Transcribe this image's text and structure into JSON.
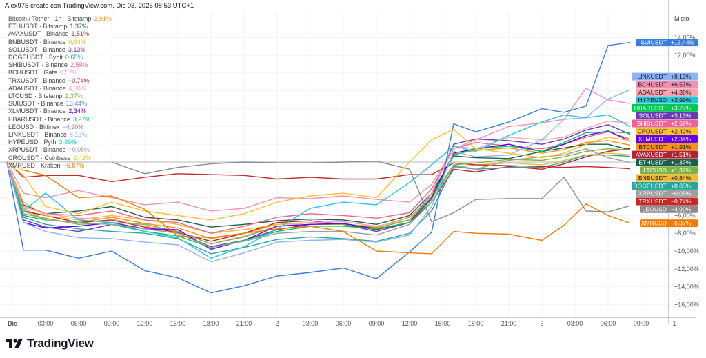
{
  "header": {
    "text": "Alex975 creato con TradingView.com, Dic 03, 2025 08:53 UTC+1"
  },
  "price_scale": {
    "mode_label": "Misto"
  },
  "footer": {
    "brand": "TradingView",
    "logo_icon": "tradingview-logo-icon"
  },
  "chart_data": {
    "type": "line",
    "ylabel": "",
    "xlabel": "",
    "y_unit": "%",
    "ylim": [
      -17,
      15
    ],
    "y_ticks_visible": [
      "14,00%",
      "12,00%",
      "−6,00%",
      "−8,00%",
      "−10,00%",
      "−12,00%",
      "−14,00%",
      "−16,00%"
    ],
    "y_tick_values": [
      14,
      12,
      -6,
      -8,
      -10,
      -12,
      -14,
      -16
    ],
    "x_tick_labels": [
      "Dic",
      "03:00",
      "06:00",
      "09:00",
      "12:00",
      "15:00",
      "18:00",
      "21:00",
      "2",
      "03:00",
      "06:00",
      "09:00",
      "12:00",
      "15:00",
      "18:00",
      "21:00",
      "3",
      "03:00",
      "06:00",
      "09:00",
      "1"
    ],
    "x_tick_times": [
      "2025-12-01 00:00",
      "2025-12-01 03:00",
      "2025-12-01 06:00",
      "2025-12-01 09:00",
      "2025-12-01 12:00",
      "2025-12-01 15:00",
      "2025-12-01 18:00",
      "2025-12-01 21:00",
      "2025-12-02 00:00",
      "2025-12-02 03:00",
      "2025-12-02 06:00",
      "2025-12-02 09:00",
      "2025-12-02 12:00",
      "2025-12-02 15:00",
      "2025-12-02 18:00",
      "2025-12-02 21:00",
      "2025-12-03 00:00",
      "2025-12-03 03:00",
      "2025-12-03 06:00",
      "2025-12-03 09:00",
      "2025-12-03 12:00"
    ],
    "grid": true,
    "legend_position": "top-left",
    "x": [
      "2025-11-30 23:30",
      "2025-12-01 01:00",
      "2025-12-01 03:00",
      "2025-12-01 06:00",
      "2025-12-01 09:00",
      "2025-12-01 12:00",
      "2025-12-01 15:00",
      "2025-12-01 18:00",
      "2025-12-01 21:00",
      "2025-12-02 00:00",
      "2025-12-02 03:00",
      "2025-12-02 06:00",
      "2025-12-02 09:00",
      "2025-12-02 12:00",
      "2025-12-02 14:00",
      "2025-12-02 16:00",
      "2025-12-02 18:00",
      "2025-12-02 21:00",
      "2025-12-03 00:00",
      "2025-12-03 02:00",
      "2025-12-03 04:00",
      "2025-12-03 06:00",
      "2025-12-03 08:00"
    ],
    "series": [
      {
        "legend": "Bitcoin / Tether · 1h · Bitstamp",
        "legend_value": "1,91%",
        "tag": "BTCUSDT",
        "tag_value": "+1,91%",
        "color": "#f7931a",
        "tag_text": "#131722",
        "values": [
          0,
          -5.2,
          -6.5,
          -6.8,
          -6.2,
          -6.9,
          -7.4,
          -8.6,
          -8.0,
          -7.0,
          -6.8,
          -7.0,
          -7.3,
          -6.2,
          -3.8,
          0.9,
          1.3,
          1.6,
          1.0,
          1.4,
          2.2,
          2.4,
          1.91
        ]
      },
      {
        "legend": "ETHUSDT · Bitstamp",
        "legend_value": "1,37%",
        "tag": "ETHUSDT",
        "tag_value": "+1,37%",
        "color": "#1b5e4b",
        "tag_text": "#ffffff",
        "values": [
          0,
          -4.8,
          -5.8,
          -5.5,
          -5.0,
          -6.2,
          -6.5,
          -7.3,
          -7.0,
          -6.6,
          -6.4,
          -6.5,
          -7.0,
          -6.0,
          -3.5,
          0.7,
          0.5,
          0.4,
          1.2,
          1.6,
          2.0,
          2.0,
          1.37
        ]
      },
      {
        "legend": "AVAXUSDT · Binance",
        "legend_value": "1,51%",
        "tag": "AVAXUSDT",
        "tag_value": "+1,51%",
        "color": "#b22234",
        "tag_text": "#ffffff",
        "values": [
          0,
          -5.5,
          -6.0,
          -6.8,
          -6.5,
          -7.3,
          -7.9,
          -8.9,
          -8.0,
          -6.8,
          -6.6,
          -7.0,
          -7.6,
          -6.8,
          -4.5,
          -0.8,
          -1.1,
          -0.5,
          -0.8,
          -0.2,
          0.6,
          1.2,
          1.51
        ]
      },
      {
        "legend": "BNBUSDT · Binance",
        "legend_value": "0,84%",
        "tag": "BNBUSDT",
        "tag_value": "+0,84%",
        "color": "#f3ba2f",
        "tag_text": "#131722",
        "values": [
          0,
          -4.5,
          -6.0,
          -6.5,
          -6.0,
          -6.5,
          -7.0,
          -8.0,
          -7.6,
          -7.0,
          -6.8,
          -7.0,
          -7.2,
          -6.5,
          -4.0,
          -0.6,
          -0.3,
          -0.1,
          -0.3,
          0.2,
          0.8,
          1.0,
          0.84
        ]
      },
      {
        "legend": "SOLUSDT · Binance",
        "legend_value": "3,13%",
        "tag": "SOLUSDT",
        "tag_value": "+3,13%",
        "color": "#673ab7",
        "tag_text": "#ffffff",
        "values": [
          0,
          -6.5,
          -7.3,
          -7.8,
          -7.0,
          -7.5,
          -8.0,
          -9.5,
          -8.8,
          -7.6,
          -7.0,
          -7.0,
          -7.8,
          -6.8,
          -3.5,
          2.0,
          2.6,
          2.4,
          2.0,
          2.6,
          3.6,
          4.2,
          3.13
        ]
      },
      {
        "legend": "DOGEUSDT · Bybit",
        "legend_value": "0,65%",
        "tag": "DOGEUSDT",
        "tag_value": "+0,65%",
        "color": "#26a69a",
        "tag_text": "#ffffff",
        "values": [
          0,
          -6.2,
          -7.0,
          -7.5,
          -7.8,
          -8.0,
          -8.6,
          -10.3,
          -9.6,
          -8.7,
          -8.4,
          -8.6,
          -8.9,
          -8.0,
          -5.5,
          -0.5,
          -0.8,
          -0.6,
          -0.6,
          0.0,
          0.8,
          0.8,
          0.65
        ]
      },
      {
        "legend": "SHIBUSDT · Binance",
        "legend_value": "2,59%",
        "tag": "SHIBUSDT",
        "tag_value": "+2,59%",
        "color": "#f06292",
        "tag_text": "#ffffff",
        "values": [
          0,
          -5.0,
          -5.8,
          -6.0,
          -5.5,
          -6.5,
          -6.8,
          -8.0,
          -7.2,
          -6.2,
          -5.8,
          -6.0,
          -6.3,
          -5.7,
          -3.0,
          1.5,
          2.2,
          1.8,
          1.5,
          2.0,
          2.8,
          3.4,
          2.59
        ]
      },
      {
        "legend": "BCHUSDT · Gate",
        "legend_value": "6,57%",
        "tag": "BCHUSDT",
        "tag_value": "+6,57%",
        "color": "#f48fb1",
        "tag_text": "#131722",
        "values": [
          0,
          -3.5,
          -4.0,
          -3.2,
          -4.0,
          -4.8,
          -4.5,
          -5.5,
          -5.2,
          -4.0,
          -4.1,
          -3.8,
          -4.2,
          -4.5,
          -2.5,
          1.5,
          2.5,
          4.0,
          4.4,
          4.8,
          8.3,
          7.0,
          6.57
        ]
      },
      {
        "legend": "TRXUSDT · Binance",
        "legend_value": "−0,74%",
        "tag": "TRXUSDT",
        "tag_value": "−0,74%",
        "color": "#c62828",
        "tag_text": "#ffffff",
        "values": [
          0,
          -1.7,
          -1.5,
          -1.5,
          -2.2,
          -1.7,
          -1.3,
          -1.4,
          -1.5,
          -1.9,
          -1.7,
          -1.9,
          -1.9,
          -1.4,
          -1.4,
          -0.1,
          -0.3,
          -0.4,
          -0.5,
          -0.6,
          -0.5,
          -0.6,
          -0.74
        ]
      },
      {
        "legend": "ADAUSDT · Binance",
        "legend_value": "4,38%",
        "tag": "ADAUSDT",
        "tag_value": "+4,38%",
        "color": "#f8a5b0",
        "tag_text": "#131722",
        "values": [
          0,
          -5.0,
          -5.8,
          -6.3,
          -6.4,
          -7.2,
          -7.8,
          -9.2,
          -8.3,
          -7.2,
          -6.8,
          -6.7,
          -7.2,
          -6.5,
          -3.5,
          1.8,
          1.5,
          2.8,
          2.5,
          2.8,
          3.8,
          4.6,
          4.38
        ]
      },
      {
        "legend": "LTCUSD · Bitstamp",
        "legend_value": "1,37%",
        "tag": "LTCUSD",
        "tag_value": "+1,37%",
        "color": "#7cb342",
        "tag_text": "#ffffff",
        "values": [
          0,
          -5.8,
          -6.3,
          -7.0,
          -6.8,
          -7.0,
          -7.8,
          -9.2,
          -8.4,
          -7.2,
          -7.0,
          -7.0,
          -7.4,
          -6.5,
          -4.0,
          -0.3,
          -0.1,
          0.3,
          0.2,
          0.6,
          1.2,
          1.5,
          1.37
        ]
      },
      {
        "legend": "SUIUSDT · Binance",
        "legend_value": "13,44%",
        "tag": "SUIUSDT",
        "tag_value": "+13,44%",
        "color": "#3b7ddd",
        "tag_text": "#ffffff",
        "values": [
          0,
          -9.9,
          -9.9,
          -10.8,
          -10.0,
          -12.2,
          -13.0,
          -14.7,
          -13.9,
          -12.8,
          -12.4,
          -11.9,
          -13.1,
          -10.1,
          -7.9,
          4.3,
          3.4,
          4.5,
          6.0,
          5.6,
          6.3,
          13.1,
          13.44
        ]
      },
      {
        "legend": "XLMUSDT · Binance",
        "legend_value": "2,34%",
        "tag": "XLMUSDT",
        "tag_value": "+2,34%",
        "color": "#6200ea",
        "tag_text": "#ffffff",
        "values": [
          0,
          -6.8,
          -7.4,
          -7.2,
          -6.8,
          -7.5,
          -7.6,
          -9.8,
          -8.8,
          -7.2,
          -7.0,
          -6.9,
          -7.5,
          -6.8,
          -4.0,
          1.0,
          1.5,
          2.0,
          1.2,
          2.0,
          3.0,
          3.5,
          2.34
        ]
      },
      {
        "legend": "HBARUSDT · Binance",
        "legend_value": "3,27%",
        "tag": "HBARUSDT",
        "tag_value": "+3,27%",
        "color": "#00c853",
        "tag_text": "#ffffff",
        "values": [
          0,
          -6.0,
          -6.5,
          -6.8,
          -7.0,
          -7.8,
          -8.3,
          -9.6,
          -8.8,
          -7.8,
          -7.2,
          -7.2,
          -7.5,
          -6.8,
          -4.2,
          0.8,
          1.5,
          1.8,
          1.2,
          2.2,
          3.3,
          3.4,
          3.27
        ]
      },
      {
        "legend": "LEOUSD · Bitfinex",
        "legend_value": "−4,90%",
        "tag": "LEOUSD",
        "tag_value": "−4,90%",
        "color": "#8a8a8a",
        "tag_text": "#ffffff",
        "values": [
          0,
          0,
          0.1,
          0,
          0,
          -1.3,
          -0.6,
          -0.2,
          0,
          -0.1,
          -0.1,
          0,
          0.1,
          -0.8,
          -6.7,
          -5.7,
          -4.2,
          -4.1,
          -4.1,
          -1.7,
          -5.5,
          -5.6,
          -4.9
        ]
      },
      {
        "legend": "LINKUSDT · Binance",
        "legend_value": "8,13%",
        "tag": "LINKUSDT",
        "tag_value": "+8,13%",
        "color": "#8fb4f5",
        "tag_text": "#131722",
        "values": [
          0,
          -6.8,
          -7.8,
          -8.5,
          -8.6,
          -9.0,
          -9.3,
          -11.2,
          -10.2,
          -9.0,
          -8.8,
          -8.7,
          -9.0,
          -8.2,
          -5.0,
          1.2,
          0.6,
          0.8,
          2.5,
          4.8,
          5.0,
          7.1,
          8.13
        ]
      },
      {
        "legend": "HYPEUSD · Pyth",
        "legend_value": "3,99%",
        "tag": "HYPEUSD",
        "tag_value": "+3,99%",
        "color": "#26c6da",
        "tag_text": "#131722",
        "values": [
          0,
          -5.5,
          -3.5,
          -6.5,
          -6.8,
          -7.8,
          -8.5,
          -10.8,
          -9.5,
          -7.5,
          -5.2,
          -4.5,
          -4.8,
          -2.3,
          -0.3,
          1.8,
          1.2,
          3.0,
          4.5,
          5.3,
          5.0,
          5.3,
          3.99
        ]
      },
      {
        "legend": "XRPUSDT · Binance",
        "legend_value": "−0,05%",
        "tag": "XRPUSDT",
        "tag_value": "−0,05%",
        "color": "#9e9e9e",
        "tag_text": "#ffffff",
        "values": [
          0,
          -5.5,
          -6.5,
          -6.8,
          -7.0,
          -7.5,
          -8.0,
          -9.6,
          -8.9,
          -8.0,
          -7.8,
          -7.8,
          -8.2,
          -7.0,
          -4.5,
          -0.3,
          -0.8,
          0.2,
          0.6,
          0.8,
          1.5,
          0.5,
          -0.05
        ]
      },
      {
        "legend": "CROUSDT · Coinbase",
        "legend_value": "2,42%",
        "tag": "CROUSDT",
        "tag_value": "+2,42%",
        "color": "#fbc02d",
        "tag_text": "#131722",
        "values": [
          0,
          -1.5,
          -5.0,
          -5.8,
          -4.5,
          -5.5,
          -6.0,
          -6.5,
          -5.8,
          -4.5,
          -3.8,
          -3.5,
          -4.0,
          0.0,
          2.5,
          3.7,
          1.5,
          1.0,
          0.5,
          1.0,
          2.0,
          2.8,
          2.42
        ]
      },
      {
        "legend": "XMRUSD · Kraken",
        "legend_value": "−6,87%",
        "tag": "XMRUSD",
        "tag_value": "−6,87%",
        "color": "#f57c00",
        "tag_text": "#ffffff",
        "values": [
          0,
          -0.9,
          -1.5,
          -4.0,
          -3.8,
          -5.3,
          -8.3,
          -8.5,
          -8.0,
          -7.5,
          -7.2,
          -7.8,
          -10.0,
          -10.2,
          -10.3,
          -7.8,
          -8.0,
          -8.1,
          -8.8,
          -7.1,
          -4.7,
          -6.0,
          -6.87
        ]
      }
    ]
  }
}
